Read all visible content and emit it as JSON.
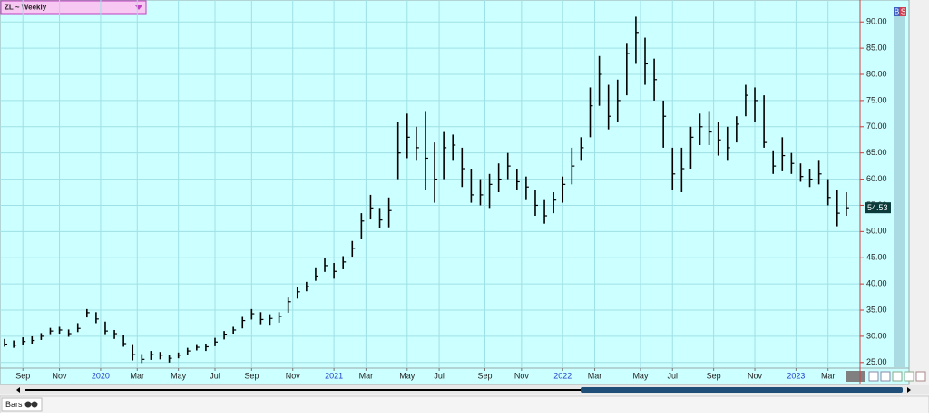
{
  "toolbar": {
    "symbol": "ZL ~ Weekly",
    "buy": "B",
    "sell": "S"
  },
  "footer": {
    "mode": "Bars"
  },
  "chart_data": {
    "type": "ohlc",
    "color": "#000000",
    "grid": true,
    "xlim": [
      -1,
      187
    ],
    "ylim": [
      24.1,
      93.5
    ],
    "xticks": [
      {
        "value": 4,
        "label": "Sep"
      },
      {
        "value": 12,
        "label": "Nov"
      },
      {
        "value": 21,
        "label": "2020"
      },
      {
        "value": 29,
        "label": "Mar"
      },
      {
        "value": 38,
        "label": "May"
      },
      {
        "value": 46,
        "label": "Jul"
      },
      {
        "value": 54,
        "label": "Sep"
      },
      {
        "value": 63,
        "label": "Nov"
      },
      {
        "value": 72,
        "label": "2021"
      },
      {
        "value": 79,
        "label": "Mar"
      },
      {
        "value": 88,
        "label": "May"
      },
      {
        "value": 95,
        "label": "Jul"
      },
      {
        "value": 105,
        "label": "Sep"
      },
      {
        "value": 113,
        "label": "Nov"
      },
      {
        "value": 122,
        "label": "2022"
      },
      {
        "value": 129,
        "label": "Mar"
      },
      {
        "value": 139,
        "label": "May"
      },
      {
        "value": 146,
        "label": "Jul"
      },
      {
        "value": 155,
        "label": "Sep"
      },
      {
        "value": 164,
        "label": "Nov"
      },
      {
        "value": 173,
        "label": "2023"
      },
      {
        "value": 180,
        "label": "Mar"
      }
    ],
    "yticks": [
      {
        "value": 25,
        "label": "25.00"
      },
      {
        "value": 30,
        "label": "30.00"
      },
      {
        "value": 35,
        "label": "35.00"
      },
      {
        "value": 40,
        "label": "40.00"
      },
      {
        "value": 45,
        "label": "45.00"
      },
      {
        "value": 50,
        "label": "50.00"
      },
      {
        "value": 55,
        "label": "55.00"
      },
      {
        "value": 60,
        "label": "60.00"
      },
      {
        "value": 65,
        "label": "65.00"
      },
      {
        "value": 70,
        "label": "70.00"
      },
      {
        "value": 75,
        "label": "75.00"
      },
      {
        "value": 80,
        "label": "80.00"
      },
      {
        "value": 85,
        "label": "85.00"
      },
      {
        "value": 90,
        "label": "90.00"
      }
    ],
    "series": [
      {
        "x": [
          0,
          2,
          4,
          6,
          8,
          10,
          12,
          14,
          16,
          18,
          20,
          22,
          24,
          26,
          28,
          30,
          32,
          34,
          36,
          38,
          40,
          42,
          44,
          46,
          48,
          50,
          52,
          54,
          56,
          58,
          60,
          62,
          64,
          66,
          68,
          70,
          72,
          74,
          76,
          78,
          80,
          82,
          84,
          86,
          88,
          90,
          92,
          94,
          96,
          98,
          100,
          102,
          104,
          106,
          108,
          110,
          112,
          114,
          116,
          118,
          120,
          122,
          124,
          126,
          128,
          130,
          132,
          134,
          136,
          138,
          140,
          142,
          144,
          146,
          148,
          150,
          152,
          154,
          156,
          158,
          160,
          162,
          164,
          166,
          168,
          170,
          172,
          174,
          176,
          178,
          180,
          182,
          184
        ],
        "high": [
          29.5,
          29.2,
          29.8,
          30,
          30.6,
          31.6,
          31.8,
          31.3,
          32.5,
          35.2,
          34.6,
          32.8,
          31.2,
          30.3,
          28.5,
          26.6,
          27.2,
          27,
          26.5,
          26.9,
          27.8,
          28.5,
          28.6,
          29.7,
          31,
          31.8,
          33.7,
          35.2,
          34.6,
          34.2,
          34.6,
          37.4,
          39.4,
          40.4,
          43,
          45,
          44,
          45.3,
          48.2,
          53.5,
          57,
          54.5,
          56.5,
          71,
          72.5,
          70,
          73,
          67,
          69,
          68.5,
          66,
          62,
          60,
          61,
          63,
          65,
          62,
          60.5,
          58,
          56,
          57.5,
          60.5,
          66,
          68,
          77.5,
          83.5,
          78,
          79,
          86,
          91,
          87,
          83,
          75,
          66,
          66,
          70,
          72.5,
          73,
          71,
          70,
          72,
          78,
          77.5,
          76,
          65.5,
          68,
          65,
          63,
          62,
          63.5,
          60,
          58,
          57.5
        ],
        "low": [
          28,
          27.8,
          28.3,
          28.6,
          29.3,
          30.4,
          30.5,
          29.9,
          30.8,
          33.6,
          32.5,
          30.4,
          29.5,
          28,
          25.4,
          24.9,
          25.5,
          25.6,
          25,
          25.8,
          26.5,
          27.3,
          27.2,
          28.1,
          29.4,
          30.5,
          31.5,
          33.2,
          32.3,
          32.2,
          32.6,
          34.5,
          37.2,
          38.6,
          40.6,
          42.3,
          41,
          42.8,
          45.2,
          48.5,
          52.3,
          50.6,
          50.8,
          60,
          64,
          63.5,
          58,
          55.5,
          60,
          63.5,
          58.5,
          55.5,
          55,
          54.5,
          57.5,
          60,
          58,
          56,
          53,
          51.5,
          53.5,
          55.5,
          59,
          63.5,
          68,
          74,
          69.5,
          71,
          76,
          82,
          78,
          75,
          66,
          58,
          57.5,
          62,
          66.5,
          66.5,
          64.5,
          63.5,
          67,
          72,
          71,
          66,
          61,
          61.5,
          61,
          59.5,
          58.5,
          59,
          55,
          51,
          53
        ],
        "close": [
          28.5,
          28.3,
          29,
          29.2,
          30,
          31,
          31.2,
          30.5,
          31.5,
          34.5,
          33.3,
          31,
          30.5,
          28.6,
          26.5,
          25.6,
          26.5,
          26.4,
          25.8,
          26.4,
          27.2,
          27.9,
          28,
          28.9,
          30.4,
          31.2,
          33,
          34.3,
          33.2,
          33.4,
          33.8,
          36.6,
          38.5,
          39.5,
          41.5,
          43.5,
          42.4,
          44.2,
          46.8,
          52,
          54.5,
          52.2,
          54,
          65,
          68,
          66,
          64,
          60,
          66,
          66.5,
          62,
          57,
          57,
          59,
          60,
          62.5,
          59.5,
          58.5,
          55,
          53,
          56,
          59,
          62.5,
          66,
          74,
          80,
          72,
          75,
          84,
          88,
          82,
          79,
          72,
          61,
          62,
          68,
          70,
          69,
          67.5,
          66,
          70.5,
          76,
          75,
          67,
          62.5,
          64.5,
          63,
          60.5,
          60,
          61,
          56.5,
          53.5,
          54.53
        ]
      }
    ]
  }
}
